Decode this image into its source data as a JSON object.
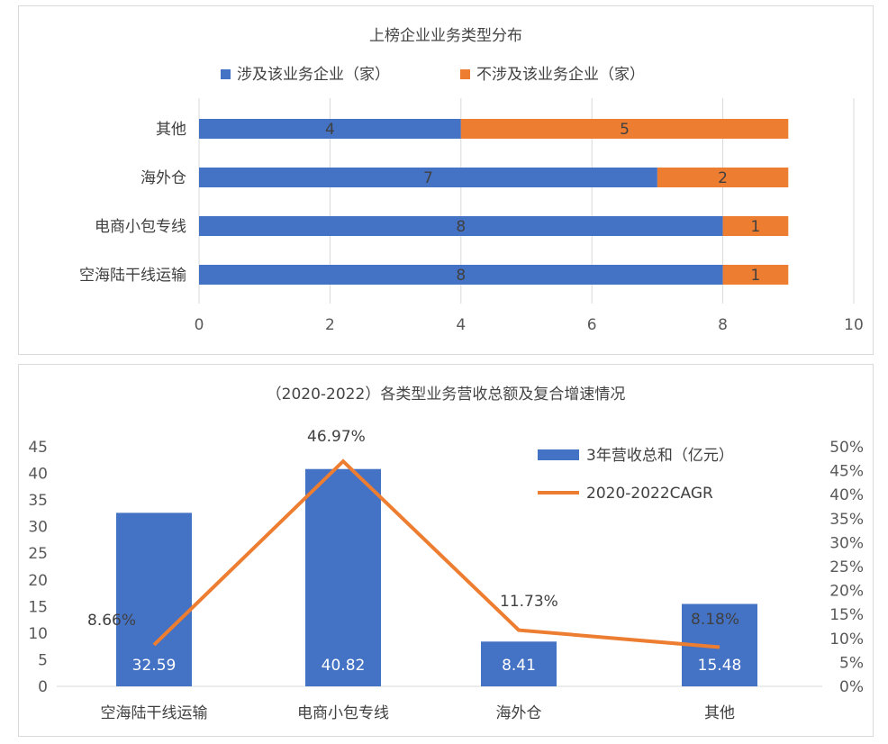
{
  "chart_data": [
    {
      "type": "bar",
      "orientation": "horizontal",
      "stacked": true,
      "title": "上榜企业业务类型分布",
      "categories": [
        "其他",
        "海外仓",
        "电商小包专线",
        "空海陆干线运输"
      ],
      "series": [
        {
          "name": "涉及该业务企业（家）",
          "values": [
            4,
            7,
            8,
            8
          ],
          "color": "#4472C4"
        },
        {
          "name": "不涉及该业务企业（家）",
          "values": [
            5,
            2,
            1,
            1
          ],
          "color": "#ED7D31"
        }
      ],
      "xlim": [
        0,
        10
      ],
      "xticks": [
        "0",
        "2",
        "4",
        "6",
        "8",
        "10"
      ],
      "grid": true,
      "legend": "top"
    },
    {
      "type": "bar",
      "combo": "bar+line",
      "title": "（2020-2022）各类型业务营收总额及复合增速情况",
      "categories": [
        "空海陆干线运输",
        "电商小包专线",
        "海外仓",
        "其他"
      ],
      "series": [
        {
          "name": "3年营收总和（亿元）",
          "type": "bar",
          "values": [
            32.59,
            40.82,
            8.41,
            15.48
          ],
          "labels": [
            "32.59",
            "40.82",
            "8.41",
            "15.48"
          ],
          "color": "#4472C4",
          "axis": "left"
        },
        {
          "name": "2020-2022CAGR",
          "type": "line",
          "values": [
            8.66,
            46.97,
            11.73,
            8.18
          ],
          "labels": [
            "8.66%",
            "46.97%",
            "11.73%",
            "8.18%"
          ],
          "color": "#ED7D31",
          "axis": "right"
        }
      ],
      "ylim": [
        0,
        45
      ],
      "yticks": [
        "0",
        "5",
        "10",
        "15",
        "20",
        "25",
        "30",
        "35",
        "40",
        "45"
      ],
      "y2lim": [
        0,
        50
      ],
      "y2ticks": [
        "0%",
        "5%",
        "10%",
        "15%",
        "20%",
        "25%",
        "30%",
        "35%",
        "40%",
        "45%",
        "50%"
      ],
      "grid": false,
      "legend": "top-right"
    }
  ]
}
